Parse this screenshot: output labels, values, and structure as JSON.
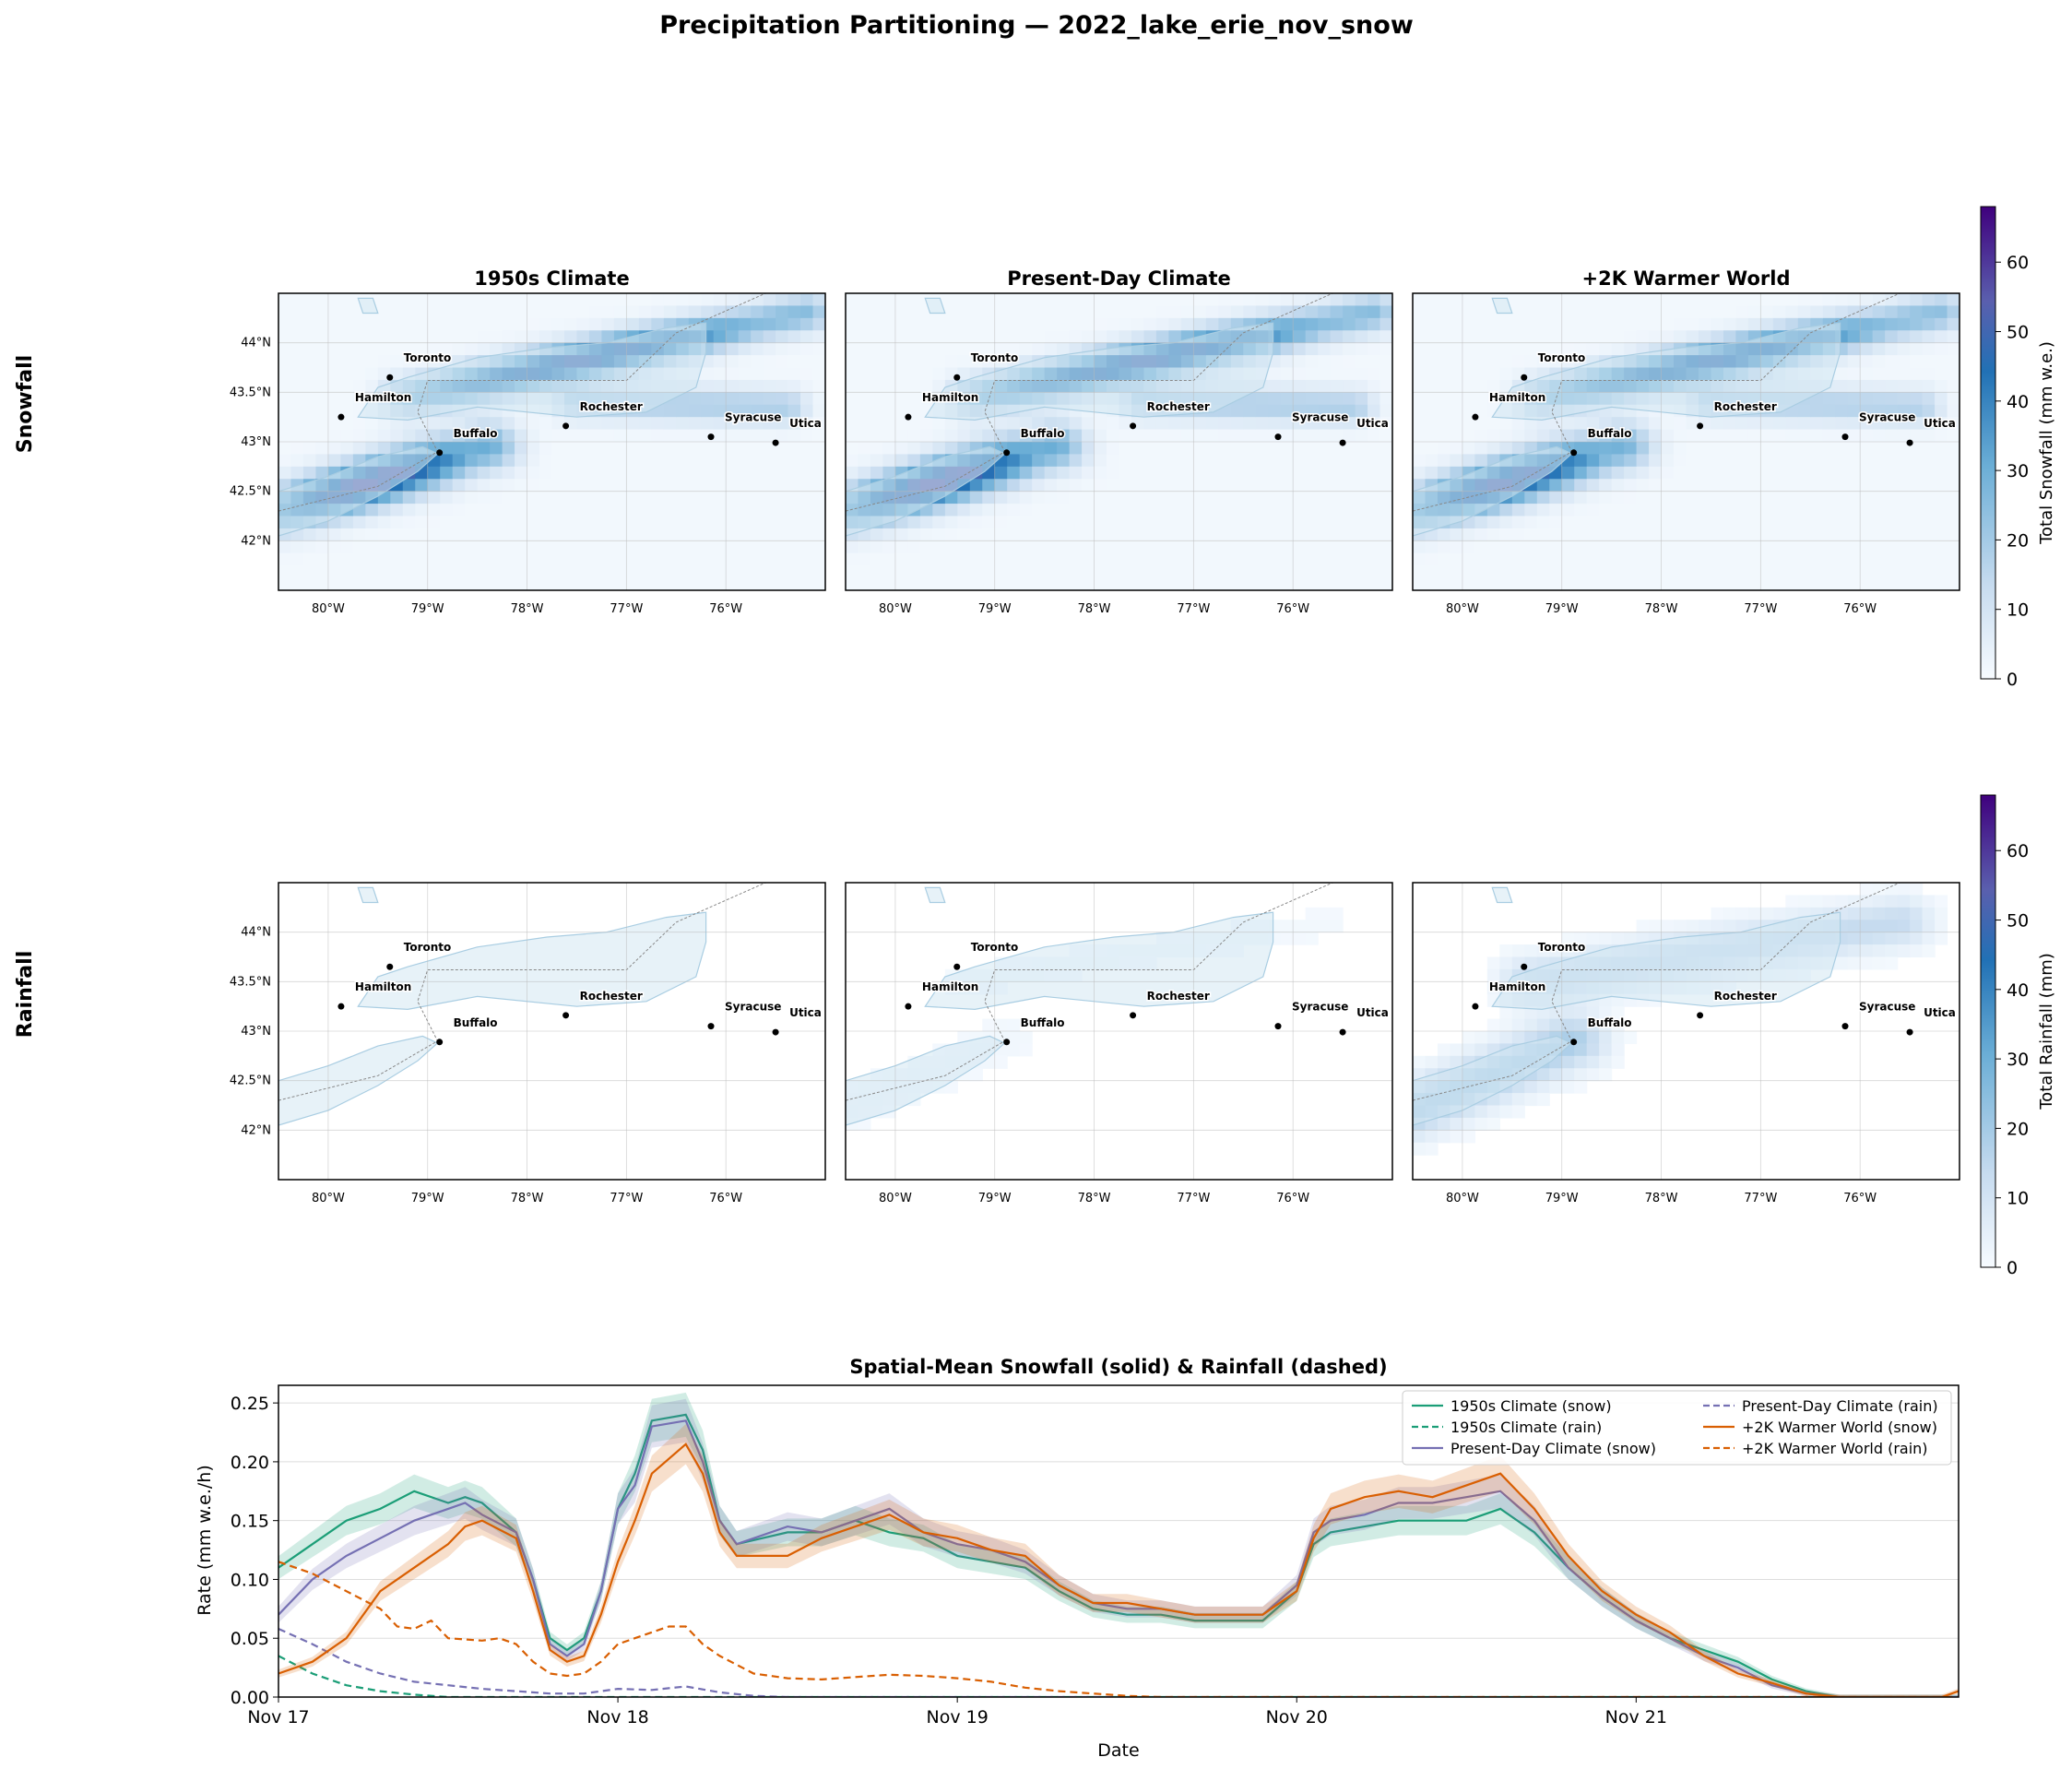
{
  "figure": {
    "title": "Precipitation Partitioning — 2022_lake_erie_nov_snow"
  },
  "rows": {
    "snow_label": "Snowfall",
    "rain_label": "Rainfall"
  },
  "colorbars": {
    "snow": {
      "label": "Total Snowfall (mm w.e.)",
      "ticks": [
        0,
        10,
        20,
        30,
        40,
        50,
        60
      ],
      "range": [
        0,
        68
      ]
    },
    "rain": {
      "label": "Total Rainfall (mm)",
      "ticks": [
        0,
        10,
        20,
        30,
        40,
        50,
        60
      ],
      "range": [
        0,
        68
      ]
    }
  },
  "colors": {
    "c1950": "#1b9e77",
    "cpresent": "#7570b3",
    "cwarm": "#d95f02",
    "lake_fill": "#d4e8f2",
    "lake_edge": "#a9cde2"
  },
  "maps": {
    "type": "heatmap",
    "panels": [
      {
        "title": "1950s Climate",
        "snow_scale": 1.0,
        "rain_scale": 0.0
      },
      {
        "title": "Present-Day Climate",
        "snow_scale": 1.0,
        "rain_scale": 0.1
      },
      {
        "title": "+2K Warmer World",
        "snow_scale": 0.95,
        "rain_scale": 1.0
      }
    ],
    "lon_ticks": [
      "80°W",
      "79°W",
      "78°W",
      "77°W",
      "76°W"
    ],
    "lat_ticks": [
      "42°N",
      "42.5°N",
      "43°N",
      "43.5°N",
      "44°N"
    ],
    "lon_range": [
      -80.5,
      -75.0
    ],
    "lat_range": [
      41.5,
      44.5
    ],
    "cities": [
      {
        "name": "Toronto",
        "lon": -79.38,
        "lat": 43.65
      },
      {
        "name": "Hamilton",
        "lon": -79.87,
        "lat": 43.25
      },
      {
        "name": "Buffalo",
        "lon": -78.88,
        "lat": 42.89
      },
      {
        "name": "Rochester",
        "lon": -77.61,
        "lat": 43.16
      },
      {
        "name": "Syracuse",
        "lon": -76.15,
        "lat": 43.05
      },
      {
        "name": "Utica",
        "lon": -75.5,
        "lat": 42.99
      }
    ]
  },
  "chart_data": {
    "type": "line",
    "title": "Spatial-Mean Snowfall (solid) & Rainfall (dashed)",
    "xlabel": "Date",
    "ylabel": "Rate (mm w.e./h)",
    "x_ticks": [
      "Nov 17",
      "Nov 18",
      "Nov 19",
      "Nov 20",
      "Nov 21"
    ],
    "x_range_days": [
      0,
      4.95
    ],
    "ylim": [
      0,
      0.265
    ],
    "y_ticks": [
      "0.00",
      "0.05",
      "0.10",
      "0.15",
      "0.20",
      "0.25"
    ],
    "legend_position": "top-right",
    "series": [
      {
        "name": "1950s Climate (snow)",
        "color": "#1b9e77",
        "dashed": false,
        "points": [
          [
            0,
            0.11
          ],
          [
            0.1,
            0.13
          ],
          [
            0.2,
            0.15
          ],
          [
            0.3,
            0.16
          ],
          [
            0.4,
            0.175
          ],
          [
            0.5,
            0.165
          ],
          [
            0.55,
            0.17
          ],
          [
            0.6,
            0.165
          ],
          [
            0.7,
            0.14
          ],
          [
            0.75,
            0.1
          ],
          [
            0.8,
            0.05
          ],
          [
            0.85,
            0.04
          ],
          [
            0.9,
            0.05
          ],
          [
            0.95,
            0.09
          ],
          [
            1.0,
            0.16
          ],
          [
            1.05,
            0.19
          ],
          [
            1.1,
            0.235
          ],
          [
            1.2,
            0.24
          ],
          [
            1.25,
            0.21
          ],
          [
            1.3,
            0.15
          ],
          [
            1.35,
            0.13
          ],
          [
            1.5,
            0.14
          ],
          [
            1.6,
            0.14
          ],
          [
            1.7,
            0.15
          ],
          [
            1.8,
            0.14
          ],
          [
            1.9,
            0.135
          ],
          [
            2.0,
            0.12
          ],
          [
            2.1,
            0.115
          ],
          [
            2.2,
            0.11
          ],
          [
            2.3,
            0.09
          ],
          [
            2.4,
            0.075
          ],
          [
            2.5,
            0.07
          ],
          [
            2.6,
            0.07
          ],
          [
            2.7,
            0.065
          ],
          [
            2.8,
            0.065
          ],
          [
            2.9,
            0.065
          ],
          [
            3.0,
            0.09
          ],
          [
            3.05,
            0.13
          ],
          [
            3.1,
            0.14
          ],
          [
            3.2,
            0.145
          ],
          [
            3.3,
            0.15
          ],
          [
            3.4,
            0.15
          ],
          [
            3.5,
            0.15
          ],
          [
            3.6,
            0.16
          ],
          [
            3.7,
            0.14
          ],
          [
            3.8,
            0.11
          ],
          [
            3.9,
            0.085
          ],
          [
            4.0,
            0.065
          ],
          [
            4.1,
            0.05
          ],
          [
            4.2,
            0.04
          ],
          [
            4.3,
            0.03
          ],
          [
            4.4,
            0.015
          ],
          [
            4.5,
            0.005
          ],
          [
            4.6,
            0.0
          ],
          [
            4.95,
            0.0
          ]
        ]
      },
      {
        "name": "1950s Climate (rain)",
        "color": "#1b9e77",
        "dashed": true,
        "points": [
          [
            0,
            0.035
          ],
          [
            0.1,
            0.02
          ],
          [
            0.2,
            0.01
          ],
          [
            0.3,
            0.005
          ],
          [
            0.4,
            0.002
          ],
          [
            0.5,
            0.0
          ],
          [
            4.95,
            0.0
          ]
        ]
      },
      {
        "name": "Present-Day Climate (snow)",
        "color": "#7570b3",
        "dashed": false,
        "points": [
          [
            0,
            0.07
          ],
          [
            0.1,
            0.1
          ],
          [
            0.2,
            0.12
          ],
          [
            0.3,
            0.135
          ],
          [
            0.4,
            0.15
          ],
          [
            0.5,
            0.16
          ],
          [
            0.55,
            0.165
          ],
          [
            0.6,
            0.155
          ],
          [
            0.7,
            0.14
          ],
          [
            0.75,
            0.1
          ],
          [
            0.8,
            0.045
          ],
          [
            0.85,
            0.035
          ],
          [
            0.9,
            0.045
          ],
          [
            0.95,
            0.09
          ],
          [
            1.0,
            0.16
          ],
          [
            1.05,
            0.18
          ],
          [
            1.1,
            0.23
          ],
          [
            1.2,
            0.235
          ],
          [
            1.25,
            0.2
          ],
          [
            1.3,
            0.15
          ],
          [
            1.35,
            0.13
          ],
          [
            1.5,
            0.145
          ],
          [
            1.6,
            0.14
          ],
          [
            1.7,
            0.15
          ],
          [
            1.8,
            0.16
          ],
          [
            1.9,
            0.14
          ],
          [
            2.0,
            0.13
          ],
          [
            2.1,
            0.125
          ],
          [
            2.2,
            0.115
          ],
          [
            2.3,
            0.095
          ],
          [
            2.4,
            0.08
          ],
          [
            2.5,
            0.075
          ],
          [
            2.6,
            0.075
          ],
          [
            2.7,
            0.07
          ],
          [
            2.8,
            0.07
          ],
          [
            2.9,
            0.07
          ],
          [
            3.0,
            0.095
          ],
          [
            3.05,
            0.14
          ],
          [
            3.1,
            0.15
          ],
          [
            3.2,
            0.155
          ],
          [
            3.3,
            0.165
          ],
          [
            3.4,
            0.165
          ],
          [
            3.5,
            0.17
          ],
          [
            3.6,
            0.175
          ],
          [
            3.7,
            0.15
          ],
          [
            3.8,
            0.11
          ],
          [
            3.9,
            0.085
          ],
          [
            4.0,
            0.065
          ],
          [
            4.1,
            0.05
          ],
          [
            4.2,
            0.035
          ],
          [
            4.3,
            0.025
          ],
          [
            4.4,
            0.01
          ],
          [
            4.5,
            0.003
          ],
          [
            4.6,
            0.0
          ],
          [
            4.95,
            0.0
          ]
        ]
      },
      {
        "name": "Present-Day Climate (rain)",
        "color": "#7570b3",
        "dashed": true,
        "points": [
          [
            0,
            0.058
          ],
          [
            0.1,
            0.045
          ],
          [
            0.2,
            0.03
          ],
          [
            0.3,
            0.02
          ],
          [
            0.4,
            0.013
          ],
          [
            0.5,
            0.01
          ],
          [
            0.6,
            0.007
          ],
          [
            0.7,
            0.005
          ],
          [
            0.8,
            0.003
          ],
          [
            0.9,
            0.003
          ],
          [
            1.0,
            0.007
          ],
          [
            1.1,
            0.006
          ],
          [
            1.2,
            0.009
          ],
          [
            1.3,
            0.004
          ],
          [
            1.4,
            0.001
          ],
          [
            1.5,
            0.0
          ],
          [
            4.95,
            0.0
          ]
        ]
      },
      {
        "name": "+2K Warmer World (snow)",
        "color": "#d95f02",
        "dashed": false,
        "points": [
          [
            0,
            0.02
          ],
          [
            0.1,
            0.03
          ],
          [
            0.2,
            0.05
          ],
          [
            0.3,
            0.09
          ],
          [
            0.4,
            0.11
          ],
          [
            0.5,
            0.13
          ],
          [
            0.55,
            0.145
          ],
          [
            0.6,
            0.15
          ],
          [
            0.7,
            0.135
          ],
          [
            0.75,
            0.09
          ],
          [
            0.8,
            0.04
          ],
          [
            0.85,
            0.03
          ],
          [
            0.9,
            0.035
          ],
          [
            0.95,
            0.07
          ],
          [
            1.0,
            0.115
          ],
          [
            1.05,
            0.15
          ],
          [
            1.1,
            0.19
          ],
          [
            1.2,
            0.215
          ],
          [
            1.25,
            0.19
          ],
          [
            1.3,
            0.14
          ],
          [
            1.35,
            0.12
          ],
          [
            1.5,
            0.12
          ],
          [
            1.6,
            0.135
          ],
          [
            1.7,
            0.145
          ],
          [
            1.8,
            0.155
          ],
          [
            1.9,
            0.14
          ],
          [
            2.0,
            0.135
          ],
          [
            2.1,
            0.125
          ],
          [
            2.2,
            0.12
          ],
          [
            2.3,
            0.095
          ],
          [
            2.4,
            0.08
          ],
          [
            2.5,
            0.08
          ],
          [
            2.6,
            0.075
          ],
          [
            2.7,
            0.07
          ],
          [
            2.8,
            0.07
          ],
          [
            2.9,
            0.07
          ],
          [
            3.0,
            0.09
          ],
          [
            3.05,
            0.135
          ],
          [
            3.1,
            0.16
          ],
          [
            3.2,
            0.17
          ],
          [
            3.3,
            0.175
          ],
          [
            3.4,
            0.17
          ],
          [
            3.5,
            0.18
          ],
          [
            3.6,
            0.19
          ],
          [
            3.7,
            0.16
          ],
          [
            3.8,
            0.12
          ],
          [
            3.9,
            0.09
          ],
          [
            4.0,
            0.07
          ],
          [
            4.1,
            0.055
          ],
          [
            4.2,
            0.035
          ],
          [
            4.3,
            0.02
          ],
          [
            4.4,
            0.012
          ],
          [
            4.5,
            0.003
          ],
          [
            4.6,
            0.0
          ],
          [
            4.9,
            0.0
          ],
          [
            4.95,
            0.005
          ]
        ]
      },
      {
        "name": "+2K Warmer World (rain)",
        "color": "#d95f02",
        "dashed": true,
        "points": [
          [
            0,
            0.115
          ],
          [
            0.1,
            0.105
          ],
          [
            0.2,
            0.09
          ],
          [
            0.3,
            0.075
          ],
          [
            0.35,
            0.06
          ],
          [
            0.4,
            0.058
          ],
          [
            0.45,
            0.065
          ],
          [
            0.5,
            0.05
          ],
          [
            0.6,
            0.048
          ],
          [
            0.65,
            0.05
          ],
          [
            0.7,
            0.045
          ],
          [
            0.75,
            0.03
          ],
          [
            0.8,
            0.02
          ],
          [
            0.85,
            0.018
          ],
          [
            0.9,
            0.02
          ],
          [
            0.95,
            0.03
          ],
          [
            1.0,
            0.045
          ],
          [
            1.1,
            0.055
          ],
          [
            1.15,
            0.06
          ],
          [
            1.2,
            0.06
          ],
          [
            1.25,
            0.045
          ],
          [
            1.3,
            0.035
          ],
          [
            1.4,
            0.02
          ],
          [
            1.5,
            0.016
          ],
          [
            1.6,
            0.015
          ],
          [
            1.7,
            0.017
          ],
          [
            1.8,
            0.019
          ],
          [
            1.9,
            0.018
          ],
          [
            2.0,
            0.016
          ],
          [
            2.1,
            0.013
          ],
          [
            2.2,
            0.008
          ],
          [
            2.3,
            0.005
          ],
          [
            2.4,
            0.003
          ],
          [
            2.5,
            0.001
          ],
          [
            2.6,
            0.0
          ],
          [
            4.95,
            0.0
          ]
        ]
      }
    ]
  }
}
